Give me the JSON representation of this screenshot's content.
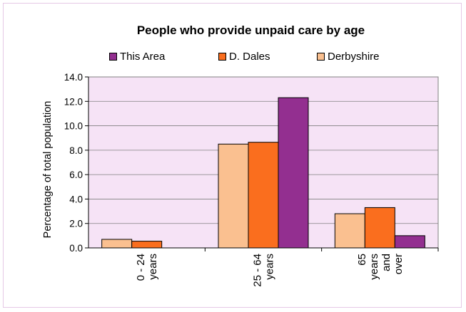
{
  "chart_data": {
    "type": "bar",
    "title": "People who provide unpaid care by age",
    "ylabel": "Percentage of total population",
    "xlabel": "",
    "ylim": [
      0,
      14
    ],
    "yticks": [
      "0.0",
      "2.0",
      "4.0",
      "6.0",
      "8.0",
      "10.0",
      "12.0",
      "14.0"
    ],
    "legend_position": "top",
    "categories": [
      [
        "0 - 24",
        "years"
      ],
      [
        "25 - 64",
        "years"
      ],
      [
        "65",
        "years",
        "and",
        "over"
      ]
    ],
    "series": [
      {
        "name": "Derbyshire",
        "color": "#fac090",
        "values": [
          0.7,
          8.5,
          2.8
        ]
      },
      {
        "name": "D. Dales",
        "color": "#fa6e1e",
        "values": [
          0.55,
          8.65,
          3.3
        ]
      },
      {
        "name": "This Area",
        "color": "#932f90",
        "values": [
          0.0,
          12.3,
          1.0
        ]
      }
    ],
    "legend_order": [
      "This Area",
      "D. Dales",
      "Derbyshire"
    ],
    "plot_background": "#f6e3f6",
    "grid": true
  }
}
